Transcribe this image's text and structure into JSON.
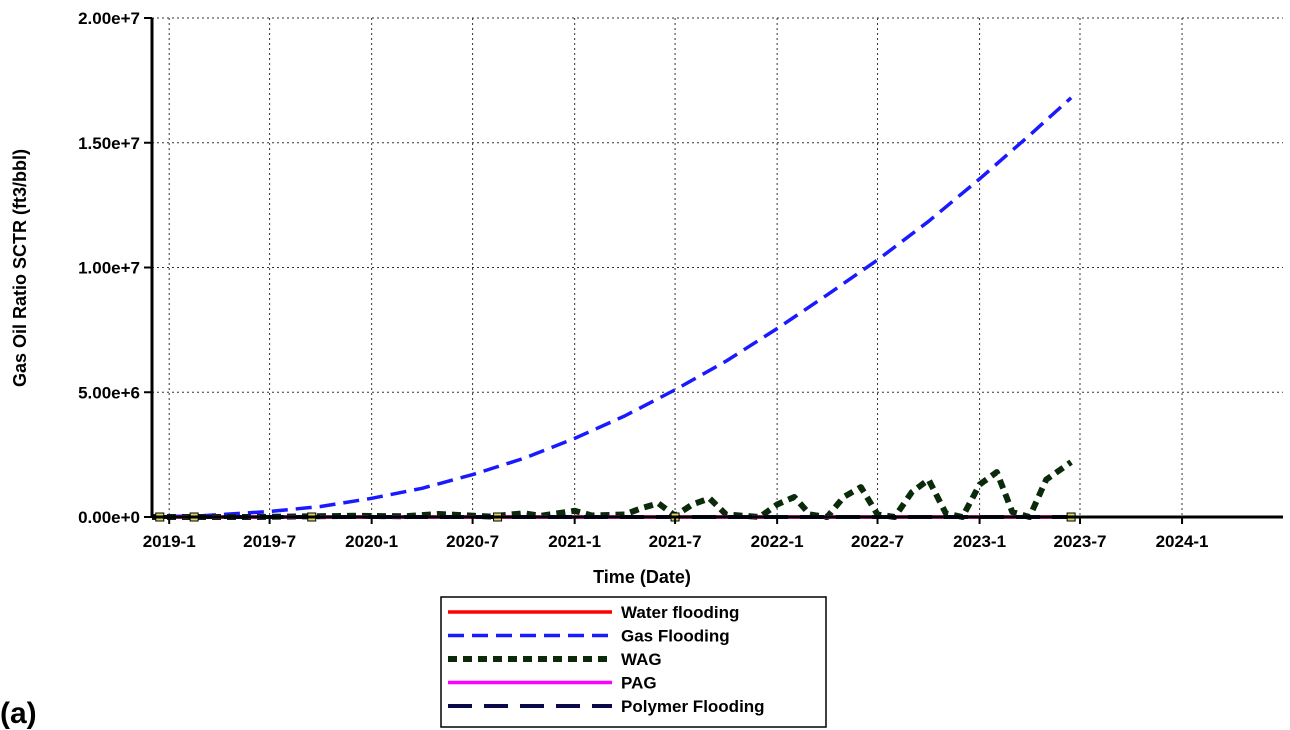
{
  "panel_label": "(a)",
  "chart_data": {
    "type": "line",
    "title": "",
    "xlabel": "Time (Date)",
    "ylabel": "Gas Oil Ratio SCTR (ft3/bbl)",
    "x_tick_labels": [
      "2019-1",
      "2019-7",
      "2020-1",
      "2020-7",
      "2021-1",
      "2021-7",
      "2022-1",
      "2022-7",
      "2023-1",
      "2023-7",
      "2024-1"
    ],
    "x_ticks": [
      "2019-01-01",
      "2019-07-01",
      "2020-01-01",
      "2020-07-01",
      "2021-01-01",
      "2021-07-01",
      "2022-01-01",
      "2022-07-01",
      "2023-01-01",
      "2023-07-01",
      "2024-01-01"
    ],
    "xlim": [
      "2018-12-01",
      "2024-07-01"
    ],
    "y_ticks": [
      0,
      5000000,
      10000000,
      15000000,
      20000000
    ],
    "y_tick_labels": [
      "0.00e+0",
      "5.00e+6",
      "1.00e+7",
      "1.50e+7",
      "2.00e+7"
    ],
    "ylim": [
      0,
      20000000
    ],
    "grid": true,
    "legend_position": "bottom-center",
    "series": [
      {
        "name": "Water flooding",
        "color": "#ff0000",
        "style": "solid",
        "x": [
          "2018-12-01",
          "2023-06-15"
        ],
        "y": [
          0,
          0
        ]
      },
      {
        "name": "Gas Flooding",
        "color": "#1a1aff",
        "style": "dashed",
        "x": [
          "2018-12-01",
          "2019-03-01",
          "2019-07-01",
          "2019-10-01",
          "2020-01-01",
          "2020-04-01",
          "2020-07-01",
          "2020-10-01",
          "2021-01-01",
          "2021-04-01",
          "2021-07-01",
          "2021-10-01",
          "2022-01-01",
          "2022-04-01",
          "2022-07-01",
          "2022-10-01",
          "2023-01-01",
          "2023-04-01",
          "2023-06-15"
        ],
        "y": [
          0,
          50000,
          220000,
          420000,
          750000,
          1150000,
          1700000,
          2350000,
          3150000,
          4050000,
          5100000,
          6250000,
          7550000,
          8900000,
          10300000,
          11850000,
          13550000,
          15300000,
          16800000
        ]
      },
      {
        "name": "WAG",
        "color": "#0a2a0a",
        "style": "dotted",
        "x": [
          "2018-12-01",
          "2019-06-01",
          "2019-12-01",
          "2020-03-01",
          "2020-05-01",
          "2020-08-01",
          "2020-10-01",
          "2020-11-01",
          "2021-01-01",
          "2021-02-01",
          "2021-04-01",
          "2021-05-01",
          "2021-06-01",
          "2021-07-01",
          "2021-08-01",
          "2021-09-01",
          "2021-10-01",
          "2021-12-01",
          "2022-01-01",
          "2022-02-01",
          "2022-03-01",
          "2022-04-01",
          "2022-05-01",
          "2022-06-01",
          "2022-07-01",
          "2022-08-01",
          "2022-09-01",
          "2022-10-01",
          "2022-11-01",
          "2022-12-01",
          "2023-01-01",
          "2023-02-01",
          "2023-03-01",
          "2023-04-01",
          "2023-05-01",
          "2023-06-15"
        ],
        "y": [
          0,
          0,
          50000,
          30000,
          120000,
          20000,
          150000,
          50000,
          250000,
          60000,
          100000,
          350000,
          550000,
          50000,
          500000,
          750000,
          100000,
          0,
          500000,
          800000,
          100000,
          0,
          800000,
          1200000,
          100000,
          0,
          1000000,
          1500000,
          150000,
          0,
          1300000,
          1800000,
          200000,
          0,
          1500000,
          2200000
        ]
      },
      {
        "name": "PAG",
        "color": "#ff00ff",
        "style": "solid",
        "x": [
          "2018-12-01",
          "2023-06-15"
        ],
        "y": [
          0,
          0
        ]
      },
      {
        "name": "Polymer Flooding",
        "color": "#0a0a4a",
        "style": "longdash",
        "x": [
          "2018-12-01",
          "2023-06-15"
        ],
        "y": [
          0,
          0
        ]
      }
    ]
  }
}
